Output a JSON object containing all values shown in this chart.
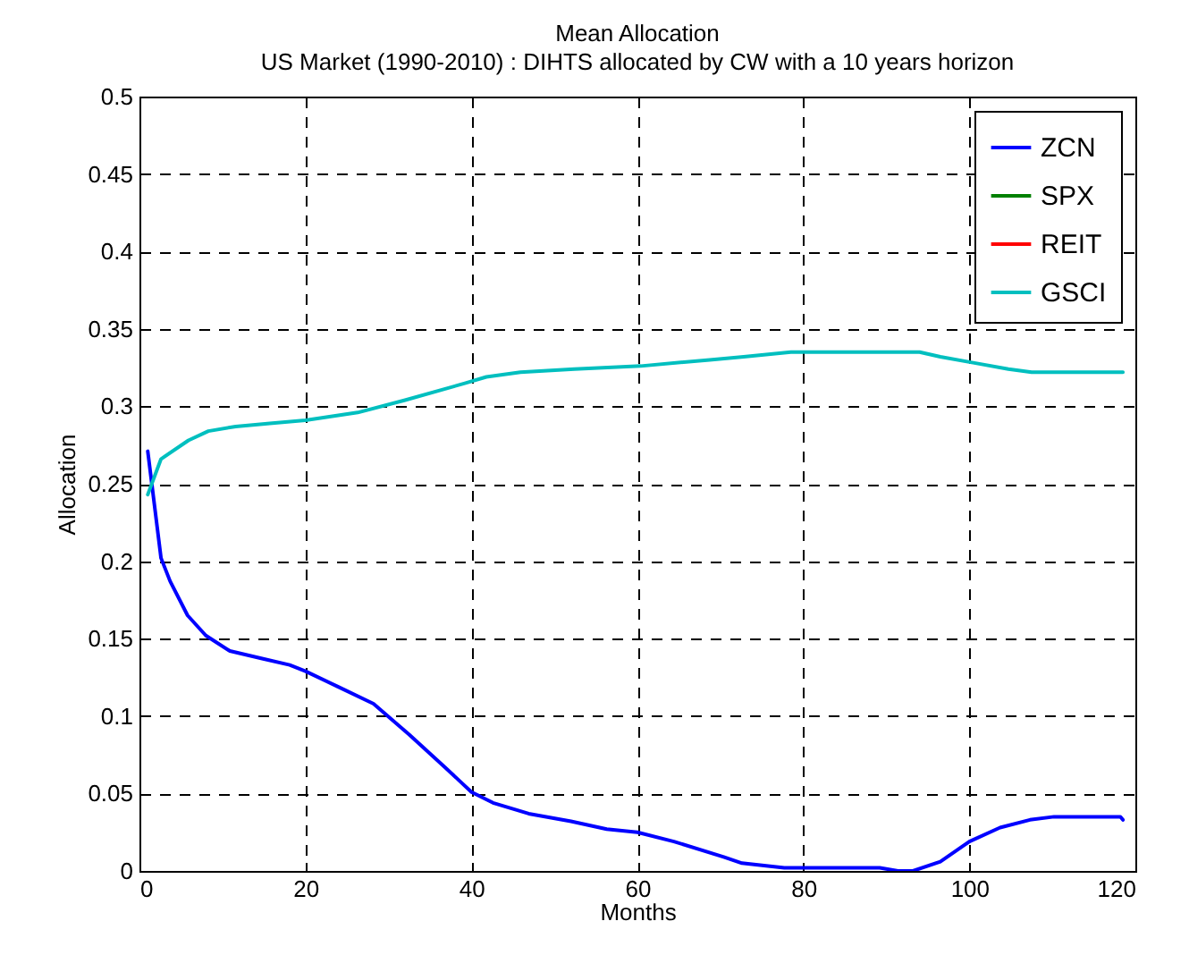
{
  "chart_data": {
    "type": "line",
    "title": "Mean Allocation",
    "subtitle": "US Market (1990-2010) : DIHTS  allocated by CW with a 10 years horizon",
    "xlabel": "Months",
    "ylabel": "Allocation",
    "xlim": [
      0,
      120
    ],
    "xticks": [
      0,
      20,
      40,
      60,
      80,
      100,
      120
    ],
    "ylim": [
      0,
      0.5
    ],
    "yticks": [
      0,
      0.05,
      0.1,
      0.15,
      0.2,
      0.25,
      0.3,
      0.35,
      0.4,
      0.45,
      0.5
    ],
    "grid": true,
    "legend": "top right",
    "line_style": "solid",
    "series": [
      {
        "name": "ZCN",
        "color": "#0000ff",
        "x": [
          1,
          2.6,
          3.7,
          5.8,
          8,
          10.9,
          14.9,
          18.1,
          20,
          23.9,
          28.2,
          32.5,
          36.8,
          40,
          42.6,
          46.9,
          52,
          56.3,
          60,
          64.4,
          70.4,
          72.6,
          77.7,
          80.2,
          89.2,
          91.4,
          93.2,
          96.5,
          100,
          103.7,
          107.3,
          110.2,
          118.2,
          118.5
        ],
        "values": [
          0.271,
          0.202,
          0.187,
          0.165,
          0.152,
          0.142,
          0.137,
          0.133,
          0.129,
          0.119,
          0.108,
          0.088,
          0.067,
          0.051,
          0.044,
          0.037,
          0.032,
          0.027,
          0.025,
          0.019,
          0.009,
          0.005,
          0.002,
          0.002,
          0.002,
          0,
          0,
          0.006,
          0.019,
          0.028,
          0.033,
          0.035,
          0.035,
          0.033
        ]
      },
      {
        "name": "SPX",
        "color": "#008000",
        "values": [
          null
        ]
      },
      {
        "name": "REIT",
        "color": "#ff0000",
        "values": [
          null
        ]
      },
      {
        "name": "GSCI",
        "color": "#00bfbf",
        "x": [
          1,
          2.6,
          5.9,
          8.3,
          11.6,
          15.7,
          20,
          26.3,
          32,
          39.3,
          41.8,
          45.9,
          52.4,
          60.4,
          68.7,
          72.8,
          78.5,
          94,
          96.5,
          100.6,
          104.7,
          107.5,
          118.5
        ],
        "values": [
          0.243,
          0.266,
          0.278,
          0.284,
          0.287,
          0.289,
          0.291,
          0.296,
          0.304,
          0.315,
          0.319,
          0.322,
          0.324,
          0.326,
          0.33,
          0.332,
          0.335,
          0.335,
          0.332,
          0.328,
          0.324,
          0.322,
          0.322
        ]
      }
    ]
  }
}
